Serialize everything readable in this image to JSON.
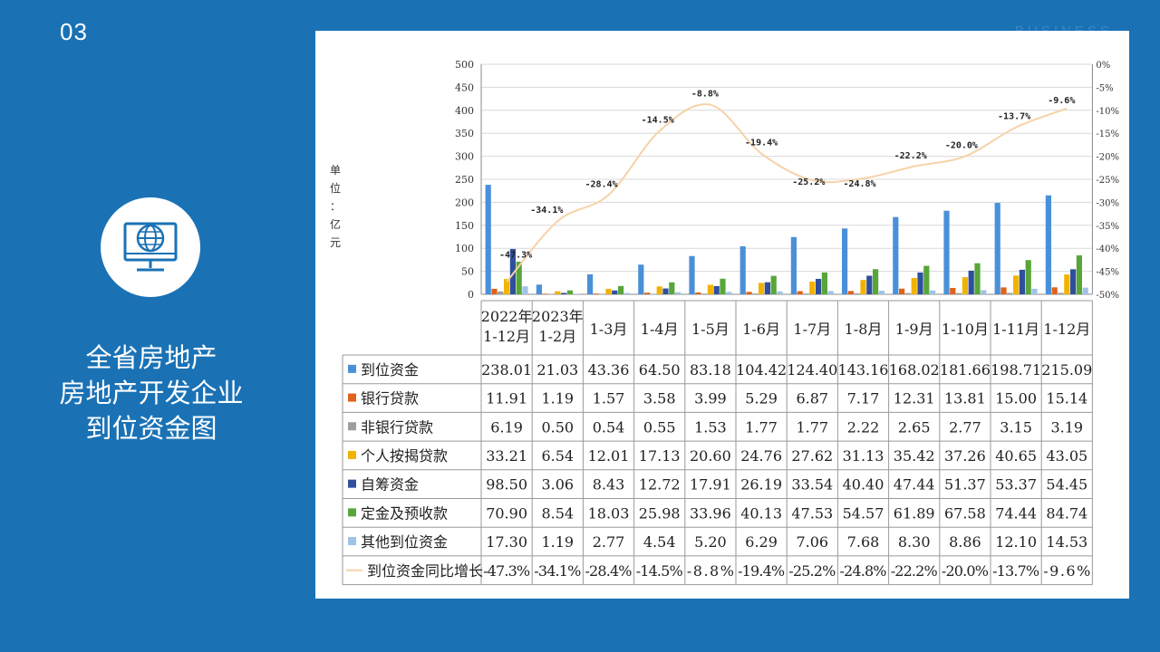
{
  "slide": {
    "number": "03",
    "watermark": "BUSINESS",
    "title_lines": [
      "全省房地产",
      "房地产开发企业",
      "到位资金图"
    ]
  },
  "icon": "globe-monitor-icon",
  "colors": {
    "background": "#1a72b5",
    "到位资金": "#4a90d9",
    "银行贷款": "#e0621c",
    "非银行贷款": "#9e9e9e",
    "个人按揭贷款": "#f2b300",
    "自筹资金": "#2f4f9e",
    "定金及预收款": "#58a63a",
    "其他到位资金": "#9fc3e6",
    "到位资金同比增长": "#f7d2a8"
  },
  "chart_data": {
    "type": "bar",
    "unit_label": [
      "单",
      "位",
      "：",
      "亿",
      "元"
    ],
    "categories": [
      [
        "2022年",
        "1-12月"
      ],
      [
        "2023年",
        "1-2月"
      ],
      [
        "1-3月"
      ],
      [
        "1-4月"
      ],
      [
        "1-5月"
      ],
      [
        "1-6月"
      ],
      [
        "1-7月"
      ],
      [
        "1-8月"
      ],
      [
        "1-9月"
      ],
      [
        "1-10月"
      ],
      [
        "1-11月"
      ],
      [
        "1-12月"
      ]
    ],
    "y_left": {
      "min": 0,
      "max": 500,
      "ticks": [
        "0",
        "50",
        "100",
        "150",
        "200",
        "250",
        "300",
        "350",
        "400",
        "450",
        "500"
      ]
    },
    "y_right": {
      "min": -50,
      "max": 0,
      "ticks": [
        "-50%",
        "-45%",
        "-40%",
        "-35%",
        "-30%",
        "-25%",
        "-20%",
        "-15%",
        "-10%",
        "-5%",
        "0%"
      ]
    },
    "series": [
      {
        "name": "到位资金",
        "values": [
          238.01,
          21.03,
          43.36,
          64.5,
          83.18,
          104.42,
          124.4,
          143.16,
          168.02,
          181.66,
          198.71,
          215.09
        ],
        "labels": [
          "238.01",
          "21.03",
          "43.36",
          "64.50",
          "83.18",
          "104.42",
          "124.40",
          "143.16",
          "168.02",
          "181.66",
          "198.71",
          "215.09"
        ]
      },
      {
        "name": "银行贷款",
        "values": [
          11.91,
          1.19,
          1.57,
          3.58,
          3.99,
          5.29,
          6.87,
          7.17,
          12.31,
          13.81,
          15.0,
          15.14
        ],
        "labels": [
          "11.91",
          "1.19",
          "1.57",
          "3.58",
          "3.99",
          "5.29",
          "6.87",
          "7.17",
          "12.31",
          "13.81",
          "15.00",
          "15.14"
        ]
      },
      {
        "name": "非银行贷款",
        "values": [
          6.19,
          0.5,
          0.54,
          0.55,
          1.53,
          1.77,
          1.77,
          2.22,
          2.65,
          2.77,
          3.15,
          3.19
        ],
        "labels": [
          "6.19",
          "0.50",
          "0.54",
          "0.55",
          "1.53",
          "1.77",
          "1.77",
          "2.22",
          "2.65",
          "2.77",
          "3.15",
          "3.19"
        ]
      },
      {
        "name": "个人按揭贷款",
        "values": [
          33.21,
          6.54,
          12.01,
          17.13,
          20.6,
          24.76,
          27.62,
          31.13,
          35.42,
          37.26,
          40.65,
          43.05
        ],
        "labels": [
          "33.21",
          "6.54",
          "12.01",
          "17.13",
          "20.60",
          "24.76",
          "27.62",
          "31.13",
          "35.42",
          "37.26",
          "40.65",
          "43.05"
        ]
      },
      {
        "name": "自筹资金",
        "values": [
          98.5,
          3.06,
          8.43,
          12.72,
          17.91,
          26.19,
          33.54,
          40.4,
          47.44,
          51.37,
          53.37,
          54.45
        ],
        "labels": [
          "98.50",
          "3.06",
          "8.43",
          "12.72",
          "17.91",
          "26.19",
          "33.54",
          "40.40",
          "47.44",
          "51.37",
          "53.37",
          "54.45"
        ]
      },
      {
        "name": "定金及预收款",
        "values": [
          70.9,
          8.54,
          18.03,
          25.98,
          33.96,
          40.13,
          47.53,
          54.57,
          61.89,
          67.58,
          74.44,
          84.74
        ],
        "labels": [
          "70.90",
          "8.54",
          "18.03",
          "25.98",
          "33.96",
          "40.13",
          "47.53",
          "54.57",
          "61.89",
          "67.58",
          "74.44",
          "84.74"
        ]
      },
      {
        "name": "其他到位资金",
        "values": [
          17.3,
          1.19,
          2.77,
          4.54,
          5.2,
          6.29,
          7.06,
          7.68,
          8.3,
          8.86,
          12.1,
          14.53
        ],
        "labels": [
          "17.30",
          "1.19",
          "2.77",
          "4.54",
          "5.20",
          "6.29",
          "7.06",
          "7.68",
          "8.30",
          "8.86",
          "12.10",
          "14.53"
        ]
      }
    ],
    "line": {
      "name": "到位资金同比增长",
      "values": [
        -47.3,
        -34.1,
        -28.4,
        -14.5,
        -8.8,
        -19.4,
        -25.2,
        -24.8,
        -22.2,
        -20.0,
        -13.7,
        -9.6
      ],
      "labels": [
        "-47.3%",
        "-34.1%",
        "-28.4%",
        "-14.5%",
        "-8.8%",
        "-19.4%",
        "-25.2%",
        "-24.8%",
        "-22.2%",
        "-20.0%",
        "-13.7%",
        "-9.6%"
      ]
    },
    "grid": true
  }
}
